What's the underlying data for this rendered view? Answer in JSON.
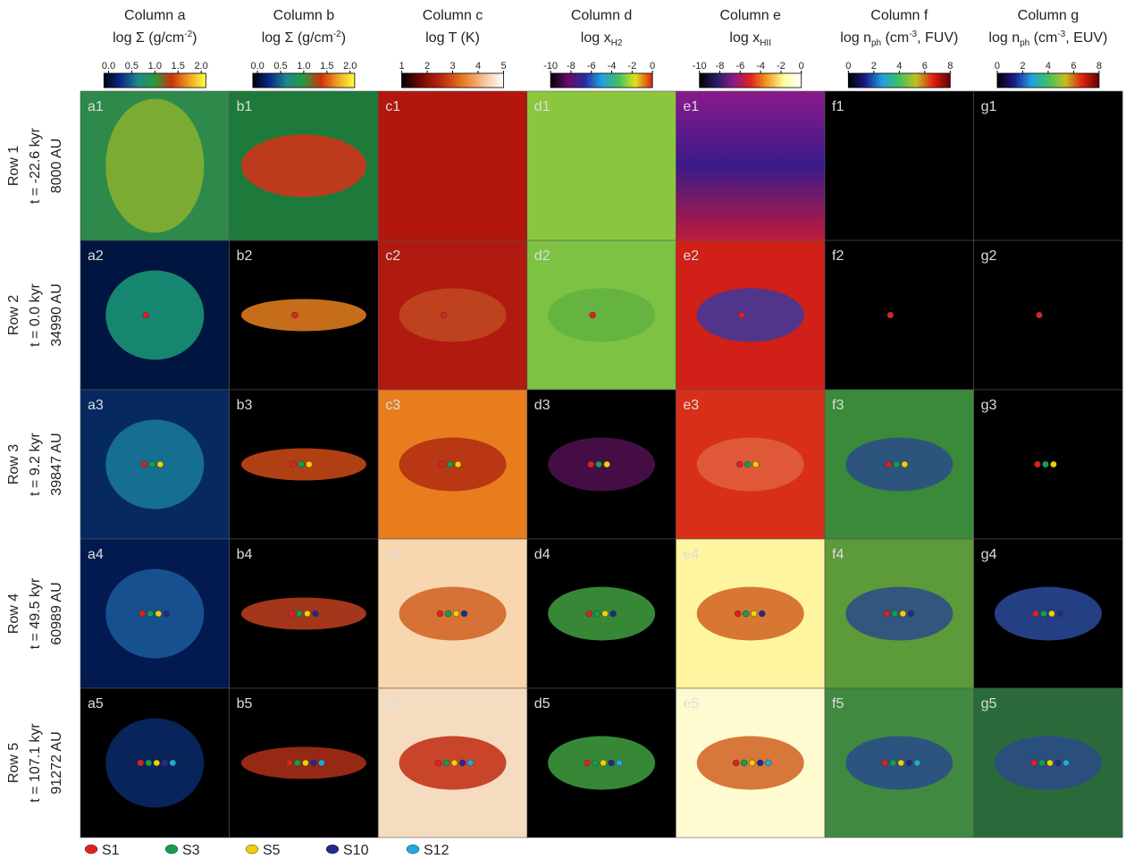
{
  "columns": [
    {
      "title": "Column a",
      "quantity": [
        {
          "t": "log Σ (g/cm"
        },
        {
          "sup": "-2"
        },
        {
          "t": ")"
        }
      ],
      "colors": [
        "#000010",
        "#0a2a8a",
        "#1a8a8a",
        "#2a9a3a",
        "#d03010",
        "#f0a020",
        "#ffff40"
      ],
      "lim": [
        -0.1,
        2.1
      ],
      "ticks": [
        {
          "value": 0,
          "label": "0.0"
        },
        0.5,
        {
          "value": 1,
          "label": "1.0"
        },
        1.5,
        {
          "value": 2,
          "label": "2.0"
        }
      ]
    },
    {
      "title": "Column b",
      "quantity": [
        {
          "t": "log Σ (g/cm"
        },
        {
          "sup": "-2"
        },
        {
          "t": ")"
        }
      ],
      "colors": [
        "#000010",
        "#0a2a8a",
        "#1a8a8a",
        "#2a9a3a",
        "#d03010",
        "#f0a020",
        "#ffff40"
      ],
      "lim": [
        -0.1,
        2.1
      ],
      "ticks": [
        {
          "value": 0,
          "label": "0.0"
        },
        0.5,
        {
          "value": 1,
          "label": "1.0"
        },
        1.5,
        {
          "value": 2,
          "label": "2.0"
        }
      ]
    },
    {
      "title": "Column c",
      "quantity": [
        {
          "t": "log T (K)"
        }
      ],
      "colors": [
        "#000000",
        "#7a0a05",
        "#c02a10",
        "#e87a20",
        "#f8c090",
        "#ffffff"
      ],
      "lim": [
        1,
        5
      ],
      "ticks": [
        1,
        2,
        3,
        4,
        5
      ]
    },
    {
      "title": "Column d",
      "quantity": [
        {
          "t": "log x"
        },
        {
          "sub": "H2"
        }
      ],
      "colors": [
        "#000000",
        "#6a0a6a",
        "#2a2aa0",
        "#20a0e0",
        "#40c060",
        "#e0e020",
        "#e02010"
      ],
      "lim": [
        -10,
        0
      ],
      "ticks": [
        -10,
        -8,
        -6,
        -4,
        -2,
        0
      ]
    },
    {
      "title": "Column e",
      "quantity": [
        {
          "t": "log x"
        },
        {
          "sub": "HII"
        }
      ],
      "colors": [
        "#000000",
        "#2a1a6a",
        "#8a1a8a",
        "#e02020",
        "#f0a020",
        "#ffffa0",
        "#ffffff"
      ],
      "lim": [
        -10,
        0
      ],
      "ticks": [
        -10,
        -8,
        -6,
        -4,
        -2,
        0
      ]
    },
    {
      "title": "Column f",
      "quantity": [
        {
          "t": "log n"
        },
        {
          "sub": "ph"
        },
        {
          "t": " (cm"
        },
        {
          "sup": "-3"
        },
        {
          "t": ", FUV)"
        }
      ],
      "colors": [
        "#000000",
        "#1a1a8a",
        "#20a0e0",
        "#40c060",
        "#c0c020",
        "#e02010",
        "#600000"
      ],
      "lim": [
        0,
        8
      ],
      "ticks": [
        0,
        2,
        4,
        6,
        8
      ]
    },
    {
      "title": "Column g",
      "quantity": [
        {
          "t": "log n"
        },
        {
          "sub": "ph"
        },
        {
          "t": " (cm"
        },
        {
          "sup": "-3"
        },
        {
          "t": ", EUV)"
        }
      ],
      "colors": [
        "#000000",
        "#1a1a8a",
        "#20a0e0",
        "#40c060",
        "#c0c020",
        "#e02010",
        "#600000"
      ],
      "lim": [
        0,
        8
      ],
      "ticks": [
        0,
        2,
        4,
        6,
        8
      ]
    }
  ],
  "rows": [
    {
      "label": "Row 1",
      "time": "t = -22.6 kyr",
      "size": "8000 AU",
      "panels": [
        "a1",
        "b1",
        "c1",
        "d1",
        "e1",
        "f1",
        "g1"
      ]
    },
    {
      "label": "Row 2",
      "time": "t =   0.0 kyr",
      "size": "34990 AU",
      "panels": [
        "a2",
        "b2",
        "c2",
        "d2",
        "e2",
        "f2",
        "g2"
      ]
    },
    {
      "label": "Row 3",
      "time": "t =   9.2 kyr",
      "size": "39847 AU",
      "panels": [
        "a3",
        "b3",
        "c3",
        "d3",
        "e3",
        "f3",
        "g3"
      ]
    },
    {
      "label": "Row 4",
      "time": "t =  49.5 kyr",
      "size": "60989 AU",
      "panels": [
        "a4",
        "b4",
        "c4",
        "d4",
        "e4",
        "f4",
        "g4"
      ]
    },
    {
      "label": "Row 5",
      "time": "t = 107.1 kyr",
      "size": "91272 AU",
      "panels": [
        "a5",
        "b5",
        "c5",
        "d5",
        "e5",
        "f5",
        "g5"
      ]
    }
  ],
  "legend": [
    {
      "name": "S1",
      "color": "#e02020"
    },
    {
      "name": "S3",
      "color": "#10a050"
    },
    {
      "name": "S5",
      "color": "#f0d000"
    },
    {
      "name": "S10",
      "color": "#202a8a"
    },
    {
      "name": "S12",
      "color": "#20a8e0"
    }
  ]
}
